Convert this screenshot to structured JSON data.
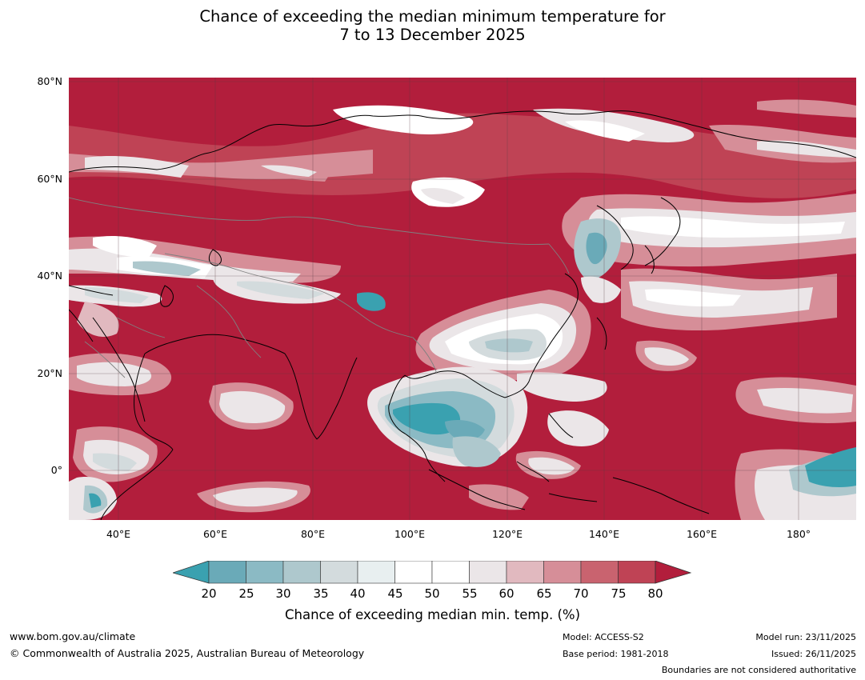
{
  "title": {
    "line1": "Chance of exceeding the median minimum temperature for",
    "line2": "7 to 13 December 2025"
  },
  "axes": {
    "lat_labels": [
      "80°N",
      "60°N",
      "40°N",
      "20°N",
      "0°"
    ],
    "lon_labels": [
      "40°E",
      "60°E",
      "80°E",
      "100°E",
      "120°E",
      "140°E",
      "160°E",
      "180°"
    ],
    "lat_range": [
      -10,
      80
    ],
    "lon_range": [
      30,
      192
    ]
  },
  "colorbar": {
    "title": "Chance of exceeding median min. temp. (%)",
    "ticks": [
      "20",
      "25",
      "30",
      "35",
      "40",
      "45",
      "50",
      "55",
      "60",
      "65",
      "70",
      "75",
      "80"
    ],
    "colors": [
      "#3aa1b0",
      "#6aaab8",
      "#8bbac4",
      "#aec8cd",
      "#d3dbdd",
      "#e8eff0",
      "#ffffff",
      "#ffffff",
      "#ebe6e8",
      "#e1b9bf",
      "#d68e98",
      "#c9636f",
      "#bf4355",
      "#b21e3c"
    ],
    "under_color": "#3aa1b0",
    "over_color": "#b21e3c"
  },
  "footer": {
    "url": "www.bom.gov.au/climate",
    "copyright": "© Commonwealth of Australia 2025, Australian Bureau of Meteorology",
    "model": "Model: ACCESS-S2",
    "base_period": "Base period: 1981-2018",
    "model_run": "Model run: 23/11/2025",
    "issued": "Issued: 26/11/2025",
    "disclaimer": "Boundaries are not considered authoritative"
  }
}
